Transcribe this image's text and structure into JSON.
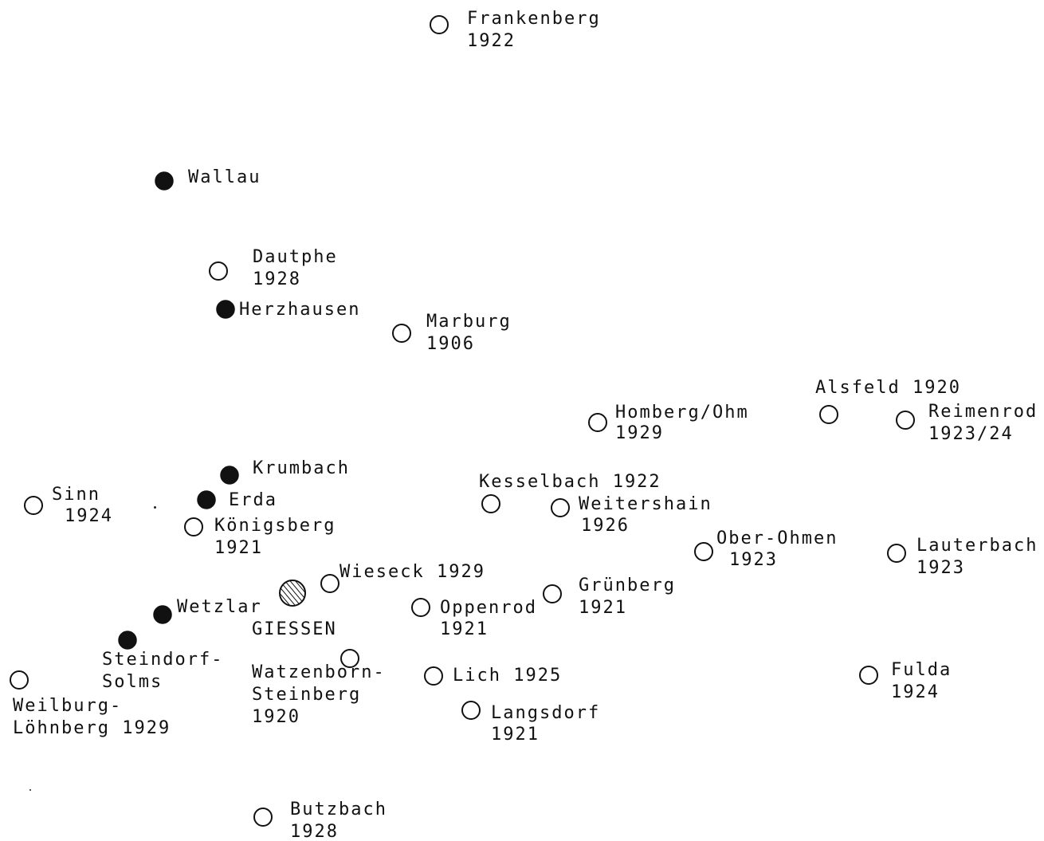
{
  "map": {
    "colors": {
      "ink": "#111111",
      "background": "#ffffff"
    },
    "places": [
      {
        "id": "frankenberg",
        "marker": "open",
        "lines": [
          "Frankenberg",
          "1922"
        ]
      },
      {
        "id": "wallau",
        "marker": "filled",
        "lines": [
          "Wallau"
        ]
      },
      {
        "id": "dautphe",
        "marker": "open",
        "lines": [
          "Dautphe",
          "1928"
        ]
      },
      {
        "id": "herzhausen",
        "marker": "filled",
        "lines": [
          "Herzhausen"
        ]
      },
      {
        "id": "marburg",
        "marker": "open",
        "lines": [
          "Marburg",
          "1906"
        ]
      },
      {
        "id": "alsfeld",
        "marker": "open",
        "lines": [
          "Alsfeld 1920"
        ]
      },
      {
        "id": "homberg-ohm",
        "marker": "open",
        "lines": [
          "Homberg/Ohm",
          "1929"
        ]
      },
      {
        "id": "reimenrod",
        "marker": "open",
        "lines": [
          "Reimenrod",
          "1923/24"
        ]
      },
      {
        "id": "krumbach",
        "marker": "filled",
        "lines": [
          "Krumbach"
        ]
      },
      {
        "id": "kesselbach",
        "marker": "open",
        "lines": [
          "Kesselbach 1922"
        ]
      },
      {
        "id": "sinn",
        "marker": "open",
        "lines": [
          "Sinn",
          "1924"
        ]
      },
      {
        "id": "erda",
        "marker": "filled",
        "lines": [
          "Erda"
        ]
      },
      {
        "id": "weitershain",
        "marker": "open",
        "lines": [
          "Weitershain",
          "1926"
        ]
      },
      {
        "id": "koenigsberg",
        "marker": "open",
        "lines": [
          "Königsberg",
          "1921"
        ]
      },
      {
        "id": "ober-ohmen",
        "marker": "open",
        "lines": [
          "Ober-Ohmen",
          "1923"
        ]
      },
      {
        "id": "lauterbach",
        "marker": "open",
        "lines": [
          "Lauterbach",
          "1923"
        ]
      },
      {
        "id": "wieseck",
        "marker": "open",
        "lines": [
          "Wieseck 1929"
        ]
      },
      {
        "id": "giessen",
        "marker": "hatched",
        "lines": [
          "GIESSEN"
        ]
      },
      {
        "id": "gruenberg",
        "marker": "open",
        "lines": [
          "Grünberg",
          "1921"
        ]
      },
      {
        "id": "wetzlar",
        "marker": "filled",
        "lines": [
          "Wetzlar"
        ]
      },
      {
        "id": "oppenrod",
        "marker": "open",
        "lines": [
          "Oppenrod",
          "1921"
        ]
      },
      {
        "id": "steindorf",
        "marker": "filled",
        "lines": [
          "Steindorf-",
          "Solms"
        ]
      },
      {
        "id": "watzenborn",
        "marker": "open",
        "lines": [
          "Watzenborn-",
          "Steinberg",
          "1920"
        ]
      },
      {
        "id": "lich",
        "marker": "open",
        "lines": [
          "Lich 1925"
        ]
      },
      {
        "id": "fulda",
        "marker": "open",
        "lines": [
          "Fulda",
          "1924"
        ]
      },
      {
        "id": "weilburg",
        "marker": "open",
        "lines": [
          "Weilburg-",
          "Löhnberg 1929"
        ]
      },
      {
        "id": "langsdorf",
        "marker": "open",
        "lines": [
          "Langsdorf",
          "1921"
        ]
      },
      {
        "id": "butzbach",
        "marker": "open",
        "lines": [
          "Butzbach",
          "1928"
        ]
      }
    ]
  }
}
